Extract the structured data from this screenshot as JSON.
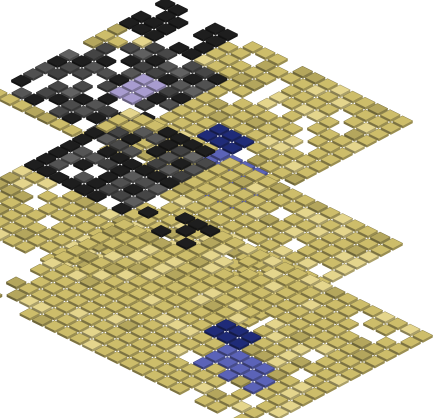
{
  "scene": {
    "kind": "isometric-tile-stack",
    "layer_count": 3,
    "colors": {
      "background": "#ffffff",
      "tile_gold": "#cdbd6a",
      "tile_gold_light": "#e4d58c",
      "tile_gold_dark": "#8f8040",
      "tile_black": "#1e1e1e",
      "tile_gray": "#4a4a4a",
      "tile_lilac": "#a89ccf",
      "tile_navy": "#1f2b78",
      "tile_blue": "#5b63b8"
    }
  }
}
